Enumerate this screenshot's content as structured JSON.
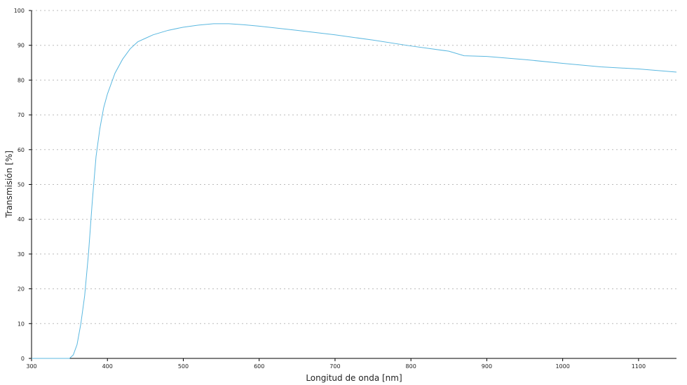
{
  "chart_data": {
    "type": "line",
    "xlabel": "Longitud de onda [nm]",
    "ylabel": "Transmisión [%]",
    "x": [
      300,
      350,
      355,
      360,
      365,
      370,
      375,
      380,
      385,
      390,
      395,
      400,
      410,
      420,
      430,
      440,
      450,
      460,
      480,
      500,
      520,
      540,
      560,
      580,
      600,
      650,
      700,
      750,
      800,
      850,
      870,
      900,
      950,
      1000,
      1050,
      1100,
      1150
    ],
    "values": [
      0,
      0,
      1,
      4,
      10,
      18,
      30,
      45,
      58,
      66,
      72,
      76,
      82,
      86,
      89,
      91,
      92,
      93,
      94.3,
      95.2,
      95.8,
      96.2,
      96.2,
      95.9,
      95.5,
      94.3,
      93,
      91.5,
      89.8,
      88.3,
      87,
      86.8,
      85.9,
      84.8,
      83.8,
      83.2,
      82.3
    ],
    "color": "#5bb8e0",
    "xlim": [
      300,
      1150
    ],
    "ylim": [
      0,
      100
    ],
    "xticks": [
      300,
      400,
      500,
      600,
      700,
      800,
      900,
      1000,
      1100
    ],
    "yticks": [
      0,
      10,
      20,
      30,
      40,
      50,
      60,
      70,
      80,
      90,
      100
    ],
    "grid": true
  }
}
